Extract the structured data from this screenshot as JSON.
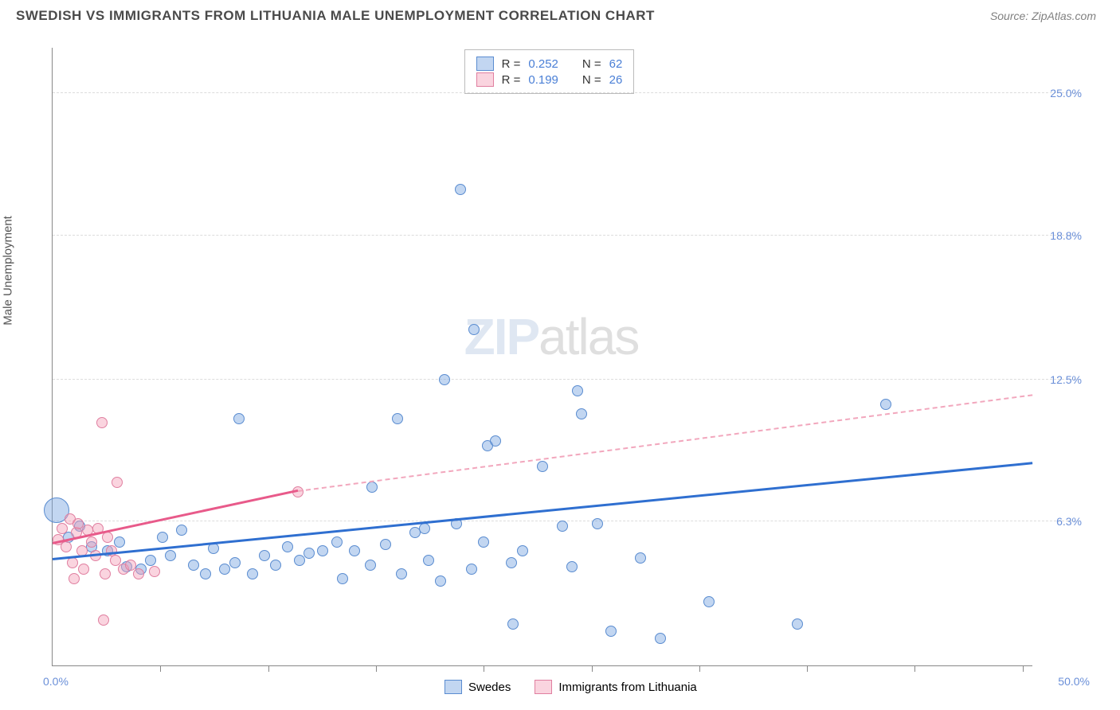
{
  "title": "SWEDISH VS IMMIGRANTS FROM LITHUANIA MALE UNEMPLOYMENT CORRELATION CHART",
  "source": "Source: ZipAtlas.com",
  "ylabel": "Male Unemployment",
  "watermark_bold": "ZIP",
  "watermark_thin": "atlas",
  "chart": {
    "type": "scatter",
    "xlim": [
      0,
      50
    ],
    "ylim": [
      0,
      27
    ],
    "x_origin_label": "0.0%",
    "x_max_label": "50.0%",
    "y_gridlines": [
      6.3,
      12.5,
      18.8,
      25.0
    ],
    "y_tick_labels": [
      "6.3%",
      "12.5%",
      "18.8%",
      "25.0%"
    ],
    "x_ticks": [
      5.5,
      11,
      16.5,
      22,
      27.5,
      33,
      38.5,
      44,
      49.5
    ],
    "background_color": "#ffffff",
    "grid_color": "#dcdcdc",
    "axis_color": "#888888",
    "tick_label_color": "#6a8fd8"
  },
  "series": {
    "swedes": {
      "label": "Swedes",
      "fill": "rgba(120,165,225,0.45)",
      "stroke": "#5a8cd0",
      "R_label": "R =",
      "R": "0.252",
      "N_label": "N =",
      "N": "62",
      "trend": {
        "x1": 0,
        "y1": 4.6,
        "x2": 50,
        "y2": 8.8,
        "color": "#2f6fd0",
        "width": 2.5
      },
      "points": [
        {
          "x": 0.2,
          "y": 6.8,
          "r": 16
        },
        {
          "x": 0.8,
          "y": 5.6,
          "r": 7
        },
        {
          "x": 1.4,
          "y": 6.1,
          "r": 7
        },
        {
          "x": 2.0,
          "y": 5.2,
          "r": 7
        },
        {
          "x": 2.8,
          "y": 5.0,
          "r": 7
        },
        {
          "x": 3.4,
          "y": 5.4,
          "r": 7
        },
        {
          "x": 3.8,
          "y": 4.3,
          "r": 7
        },
        {
          "x": 4.5,
          "y": 4.2,
          "r": 7
        },
        {
          "x": 5.0,
          "y": 4.6,
          "r": 7
        },
        {
          "x": 5.6,
          "y": 5.6,
          "r": 7
        },
        {
          "x": 6.0,
          "y": 4.8,
          "r": 7
        },
        {
          "x": 6.6,
          "y": 5.9,
          "r": 7
        },
        {
          "x": 7.2,
          "y": 4.4,
          "r": 7
        },
        {
          "x": 7.8,
          "y": 4.0,
          "r": 7
        },
        {
          "x": 8.2,
          "y": 5.1,
          "r": 7
        },
        {
          "x": 8.8,
          "y": 4.2,
          "r": 7
        },
        {
          "x": 9.3,
          "y": 4.5,
          "r": 7
        },
        {
          "x": 9.5,
          "y": 10.8,
          "r": 7
        },
        {
          "x": 10.2,
          "y": 4.0,
          "r": 7
        },
        {
          "x": 10.8,
          "y": 4.8,
          "r": 7
        },
        {
          "x": 11.4,
          "y": 4.4,
          "r": 7
        },
        {
          "x": 12.0,
          "y": 5.2,
          "r": 7
        },
        {
          "x": 12.6,
          "y": 4.6,
          "r": 7
        },
        {
          "x": 13.1,
          "y": 4.9,
          "r": 7
        },
        {
          "x": 13.8,
          "y": 5.0,
          "r": 7
        },
        {
          "x": 14.5,
          "y": 5.4,
          "r": 7
        },
        {
          "x": 14.8,
          "y": 3.8,
          "r": 7
        },
        {
          "x": 15.4,
          "y": 5.0,
          "r": 7
        },
        {
          "x": 16.2,
          "y": 4.4,
          "r": 7
        },
        {
          "x": 16.3,
          "y": 7.8,
          "r": 7
        },
        {
          "x": 17.0,
          "y": 5.3,
          "r": 7
        },
        {
          "x": 17.6,
          "y": 10.8,
          "r": 7
        },
        {
          "x": 17.8,
          "y": 4.0,
          "r": 7
        },
        {
          "x": 18.5,
          "y": 5.8,
          "r": 7
        },
        {
          "x": 19.0,
          "y": 6.0,
          "r": 7
        },
        {
          "x": 19.2,
          "y": 4.6,
          "r": 7
        },
        {
          "x": 19.8,
          "y": 3.7,
          "r": 7
        },
        {
          "x": 20.0,
          "y": 12.5,
          "r": 7
        },
        {
          "x": 20.6,
          "y": 6.2,
          "r": 7
        },
        {
          "x": 20.8,
          "y": 20.8,
          "r": 7
        },
        {
          "x": 21.4,
          "y": 4.2,
          "r": 7
        },
        {
          "x": 21.5,
          "y": 14.7,
          "r": 7
        },
        {
          "x": 22.0,
          "y": 5.4,
          "r": 7
        },
        {
          "x": 22.2,
          "y": 9.6,
          "r": 7
        },
        {
          "x": 22.6,
          "y": 9.8,
          "r": 7
        },
        {
          "x": 23.4,
          "y": 4.5,
          "r": 7
        },
        {
          "x": 23.5,
          "y": 1.8,
          "r": 7
        },
        {
          "x": 24.0,
          "y": 5.0,
          "r": 7
        },
        {
          "x": 25.0,
          "y": 8.7,
          "r": 7
        },
        {
          "x": 26.0,
          "y": 6.1,
          "r": 7
        },
        {
          "x": 26.5,
          "y": 4.3,
          "r": 7
        },
        {
          "x": 26.8,
          "y": 12.0,
          "r": 7
        },
        {
          "x": 27.0,
          "y": 11.0,
          "r": 7
        },
        {
          "x": 27.8,
          "y": 6.2,
          "r": 7
        },
        {
          "x": 28.5,
          "y": 1.5,
          "r": 7
        },
        {
          "x": 30.0,
          "y": 4.7,
          "r": 7
        },
        {
          "x": 31.0,
          "y": 1.2,
          "r": 7
        },
        {
          "x": 33.5,
          "y": 2.8,
          "r": 7
        },
        {
          "x": 38.0,
          "y": 1.8,
          "r": 7
        },
        {
          "x": 42.5,
          "y": 11.4,
          "r": 7
        }
      ]
    },
    "lithuania": {
      "label": "Immigrants from Lithuania",
      "fill": "rgba(245,160,185,0.45)",
      "stroke": "#e07fa0",
      "R_label": "R =",
      "R": "0.199",
      "N_label": "N =",
      "N": "26",
      "trend_solid": {
        "x1": 0,
        "y1": 5.3,
        "x2": 12.5,
        "y2": 7.6,
        "color": "#e85a8a",
        "width": 2.5
      },
      "trend_dashed": {
        "x1": 12.5,
        "y1": 7.6,
        "x2": 50,
        "y2": 11.8,
        "color": "#f2a7bd",
        "width": 2
      },
      "points": [
        {
          "x": 0.3,
          "y": 5.5,
          "r": 7
        },
        {
          "x": 0.5,
          "y": 6.0,
          "r": 7
        },
        {
          "x": 0.7,
          "y": 5.2,
          "r": 7
        },
        {
          "x": 0.9,
          "y": 6.4,
          "r": 7
        },
        {
          "x": 1.0,
          "y": 4.5,
          "r": 7
        },
        {
          "x": 1.2,
          "y": 5.8,
          "r": 7
        },
        {
          "x": 1.3,
          "y": 6.2,
          "r": 7
        },
        {
          "x": 1.5,
          "y": 5.0,
          "r": 7
        },
        {
          "x": 1.6,
          "y": 4.2,
          "r": 7
        },
        {
          "x": 1.8,
          "y": 5.9,
          "r": 7
        },
        {
          "x": 2.0,
          "y": 5.4,
          "r": 7
        },
        {
          "x": 2.2,
          "y": 4.8,
          "r": 7
        },
        {
          "x": 2.3,
          "y": 6.0,
          "r": 7
        },
        {
          "x": 2.5,
          "y": 10.6,
          "r": 7
        },
        {
          "x": 2.7,
          "y": 4.0,
          "r": 7
        },
        {
          "x": 2.8,
          "y": 5.6,
          "r": 7
        },
        {
          "x": 3.0,
          "y": 5.0,
          "r": 7
        },
        {
          "x": 3.2,
          "y": 4.6,
          "r": 7
        },
        {
          "x": 3.3,
          "y": 8.0,
          "r": 7
        },
        {
          "x": 3.6,
          "y": 4.2,
          "r": 7
        },
        {
          "x": 4.0,
          "y": 4.4,
          "r": 7
        },
        {
          "x": 4.4,
          "y": 4.0,
          "r": 7
        },
        {
          "x": 2.6,
          "y": 2.0,
          "r": 7
        },
        {
          "x": 1.1,
          "y": 3.8,
          "r": 7
        },
        {
          "x": 5.2,
          "y": 4.1,
          "r": 7
        },
        {
          "x": 12.5,
          "y": 7.6,
          "r": 7
        }
      ]
    }
  }
}
